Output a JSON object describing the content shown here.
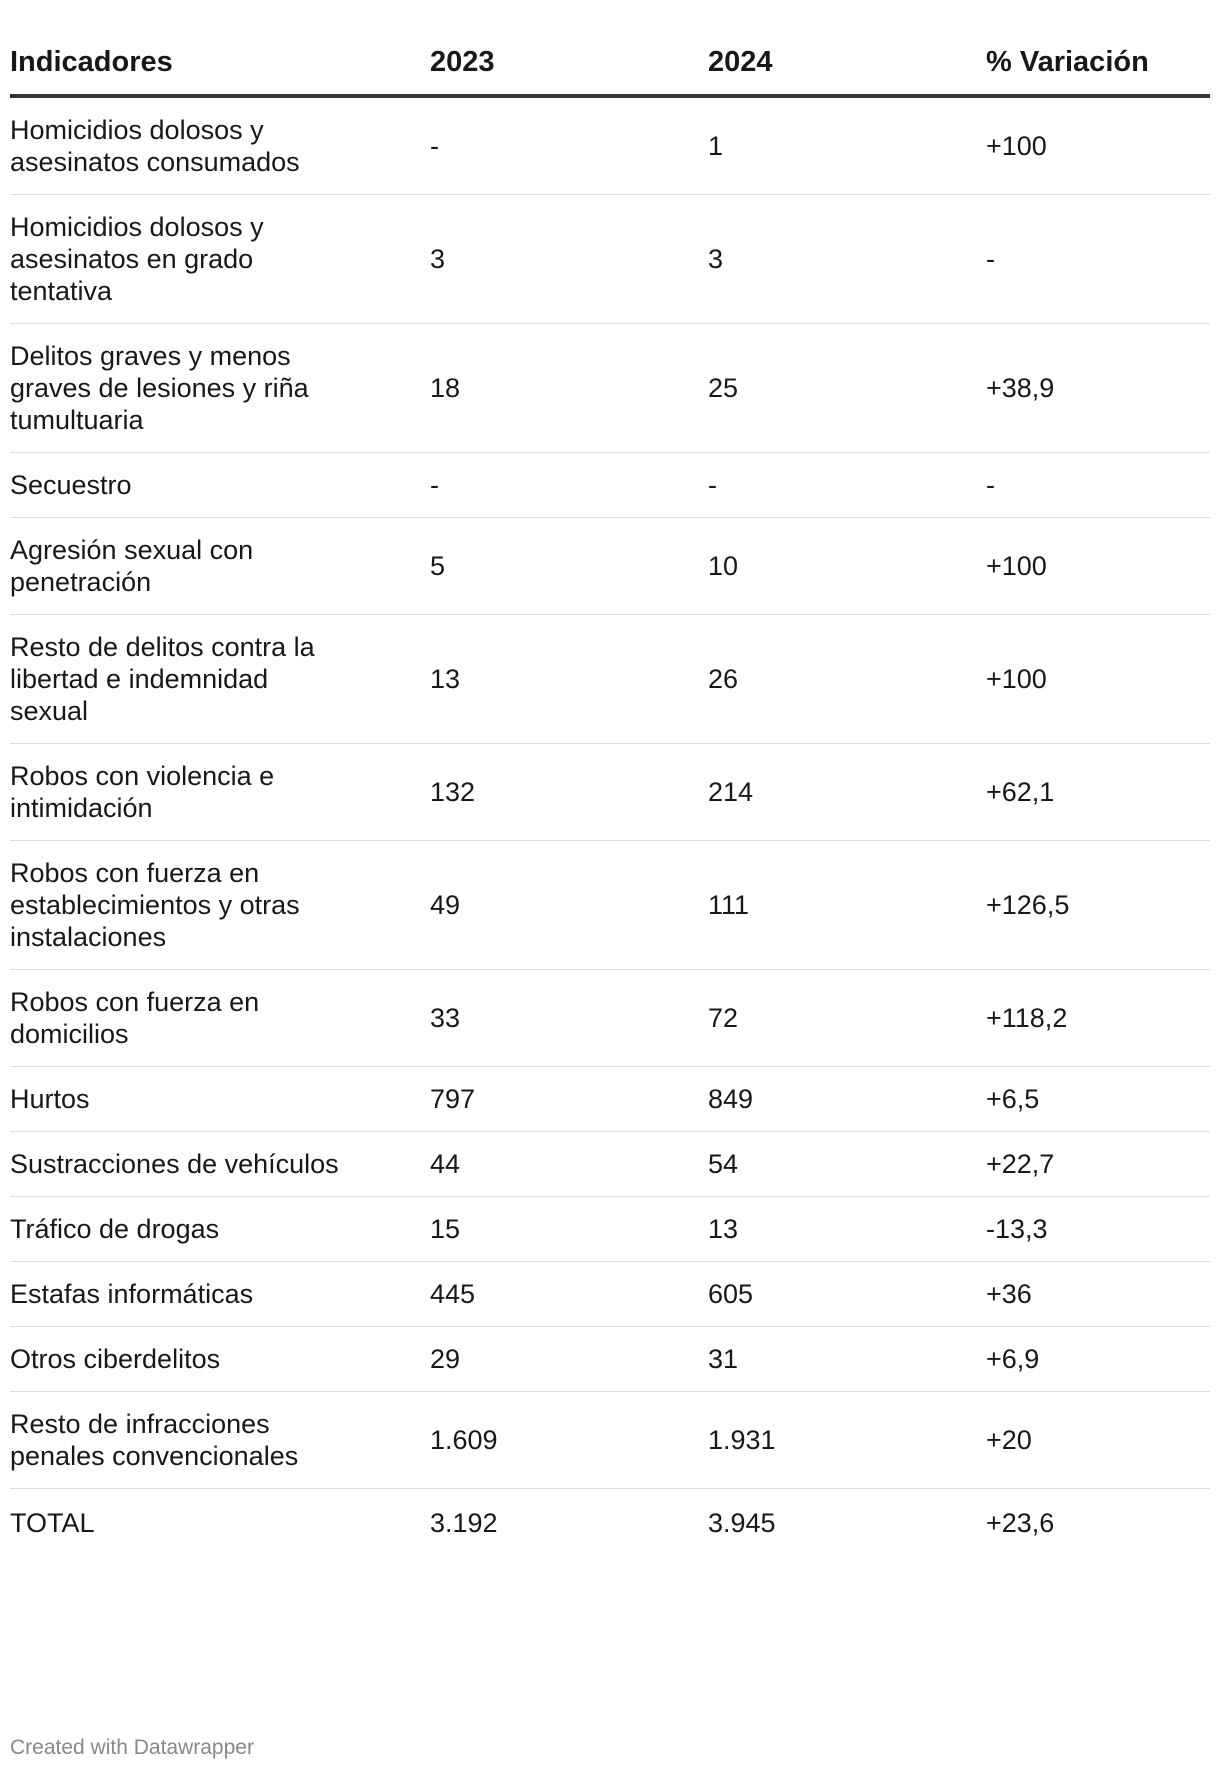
{
  "chart_data": {
    "type": "table",
    "columns": [
      "Indicadores",
      "2023",
      "2024",
      "% Variación"
    ],
    "rows": [
      {
        "indicator": "Homicidios dolosos y asesinatos consumados",
        "y2023": "-",
        "y2024": "1",
        "variation": "+100"
      },
      {
        "indicator": "Homicidios dolosos y asesinatos en grado tentativa",
        "y2023": "3",
        "y2024": "3",
        "variation": "-"
      },
      {
        "indicator": "Delitos graves y menos graves de lesiones y riña tumultuaria",
        "y2023": "18",
        "y2024": "25",
        "variation": "+38,9"
      },
      {
        "indicator": "Secuestro",
        "y2023": "-",
        "y2024": "-",
        "variation": "-"
      },
      {
        "indicator": "Agresión sexual con penetración",
        "y2023": "5",
        "y2024": "10",
        "variation": "+100"
      },
      {
        "indicator": "Resto de delitos contra la libertad e indemnidad sexual",
        "y2023": "13",
        "y2024": "26",
        "variation": "+100"
      },
      {
        "indicator": "Robos con violencia e intimidación",
        "y2023": "132",
        "y2024": "214",
        "variation": "+62,1"
      },
      {
        "indicator": "Robos con fuerza en establecimientos y otras instalaciones",
        "y2023": "49",
        "y2024": "111",
        "variation": "+126,5"
      },
      {
        "indicator": "Robos con fuerza en domicilios",
        "y2023": "33",
        "y2024": "72",
        "variation": "+118,2"
      },
      {
        "indicator": "Hurtos",
        "y2023": "797",
        "y2024": "849",
        "variation": "+6,5"
      },
      {
        "indicator": "Sustracciones de vehículos",
        "y2023": "44",
        "y2024": "54",
        "variation": "+22,7"
      },
      {
        "indicator": "Tráfico de drogas",
        "y2023": "15",
        "y2024": "13",
        "variation": "-13,3"
      },
      {
        "indicator": "Estafas informáticas",
        "y2023": "445",
        "y2024": "605",
        "variation": "+36"
      },
      {
        "indicator": "Otros ciberdelitos",
        "y2023": "29",
        "y2024": "31",
        "variation": "+6,9"
      },
      {
        "indicator": "Resto de infracciones penales convencionales",
        "y2023": "1.609",
        "y2024": "1.931",
        "variation": "+20"
      },
      {
        "indicator": "TOTAL",
        "y2023": "3.192",
        "y2024": "3.945",
        "variation": "+23,6"
      }
    ]
  },
  "footer": {
    "credit": "Created with Datawrapper"
  },
  "colors": {
    "text": "#181818",
    "header_rule": "#333333",
    "row_rule": "#dddddd",
    "footer_text": "#888888"
  }
}
